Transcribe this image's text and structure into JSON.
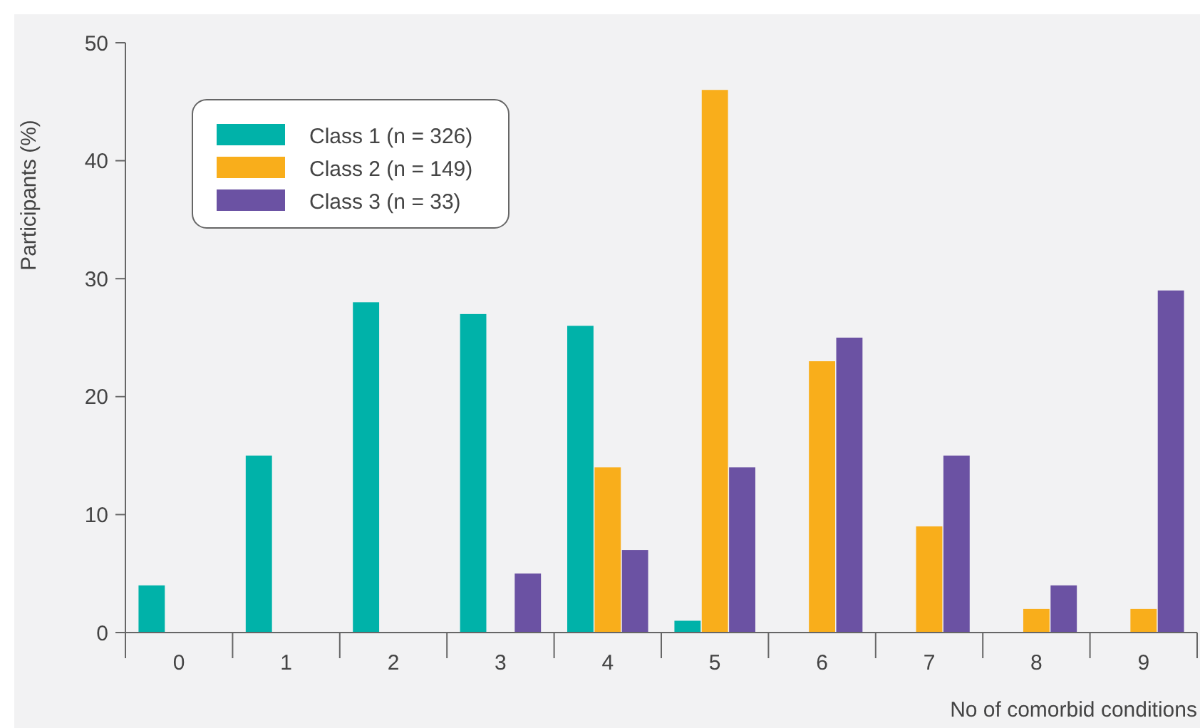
{
  "chart_data": {
    "type": "bar",
    "ylabel": "Participants (%)",
    "xlabel": "No of comorbid conditions",
    "categories": [
      "0",
      "1",
      "2",
      "3",
      "4",
      "5",
      "6",
      "7",
      "8",
      "9"
    ],
    "series": [
      {
        "name": "Class 1 (n = 326)",
        "color": "#00b2a9",
        "values": [
          4,
          15,
          28,
          27,
          26,
          1,
          0,
          0,
          0,
          0
        ]
      },
      {
        "name": "Class 2 (n = 149)",
        "color": "#f9ae1b",
        "values": [
          0,
          0,
          0,
          0,
          14,
          46,
          23,
          9,
          2,
          2
        ]
      },
      {
        "name": "Class 3 (n = 33)",
        "color": "#6b52a3",
        "values": [
          0,
          0,
          0,
          5,
          7,
          14,
          25,
          15,
          4,
          29
        ]
      }
    ],
    "ylim": [
      0,
      50
    ],
    "yticks": [
      0,
      10,
      20,
      30,
      40,
      50
    ],
    "grid": false,
    "legend": "top left"
  }
}
